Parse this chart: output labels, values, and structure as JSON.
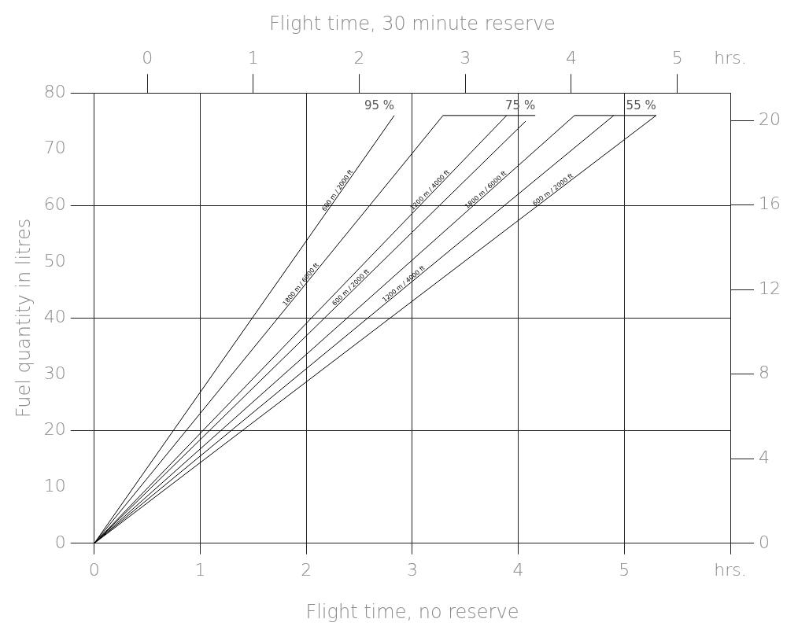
{
  "chart_data": {
    "type": "line",
    "xlabel": "Flight time, no reserve",
    "x2label": "Flight time, 30 minute reserve",
    "ylabel": "Fuel quantity in litres",
    "xlim": [
      0,
      6
    ],
    "xticks": [
      0,
      1,
      2,
      3,
      4,
      5,
      {
        "value": 6,
        "label": "hrs."
      }
    ],
    "x2lim": [
      -0.5,
      5.5
    ],
    "x2ticks": [
      0,
      1,
      2,
      3,
      4,
      5,
      {
        "value": 5.5,
        "label": "hrs."
      }
    ],
    "ylim": [
      0,
      80
    ],
    "yticks": [
      0,
      10,
      20,
      30,
      40,
      50,
      60,
      70,
      80
    ],
    "y2lim": [
      0,
      21.3
    ],
    "y2ticks": [
      0,
      4,
      8,
      12,
      16,
      20
    ],
    "grid": true,
    "legend": false,
    "marker": "none",
    "line_style": "solid",
    "series": [
      {
        "name": "600 m / 2000 ft",
        "color": "#000000",
        "x": [
          0,
          2.83
        ],
        "values": [
          0,
          76
        ]
      },
      {
        "name": "1800 m / 6000 ft",
        "color": "#000000",
        "x": [
          0,
          3.29
        ],
        "values": [
          0,
          76
        ]
      },
      {
        "name": "1200 m / 4000 ft",
        "color": "#000000",
        "x": [
          0,
          3.89
        ],
        "values": [
          0,
          76
        ]
      },
      {
        "name": "600 m / 2000 ft",
        "color": "#000000",
        "x": [
          0,
          4.07
        ],
        "values": [
          0,
          75
        ]
      },
      {
        "name": "1800 m / 6000 ft",
        "color": "#000000",
        "x": [
          0,
          4.53
        ],
        "values": [
          0,
          76
        ]
      },
      {
        "name": "1200 m / 4000 ft",
        "color": "#000000",
        "x": [
          0,
          4.9
        ],
        "values": [
          0,
          76
        ]
      },
      {
        "name": "600 m / 2000 ft",
        "color": "#000000",
        "x": [
          0,
          5.3
        ],
        "values": [
          0,
          76
        ]
      },
      {
        "color": "#000000",
        "x": [
          3.29,
          4.16
        ],
        "values": [
          76,
          76
        ]
      },
      {
        "color": "#000000",
        "x": [
          4.53,
          5.3
        ],
        "values": [
          76,
          76
        ]
      }
    ],
    "annotations": [
      {
        "text": "95 %",
        "x": 2.83,
        "y": 76
      },
      {
        "text": "75 %",
        "x": 4.16,
        "y": 76
      },
      {
        "text": "55 %",
        "x": 5.3,
        "y": 76
      }
    ]
  }
}
